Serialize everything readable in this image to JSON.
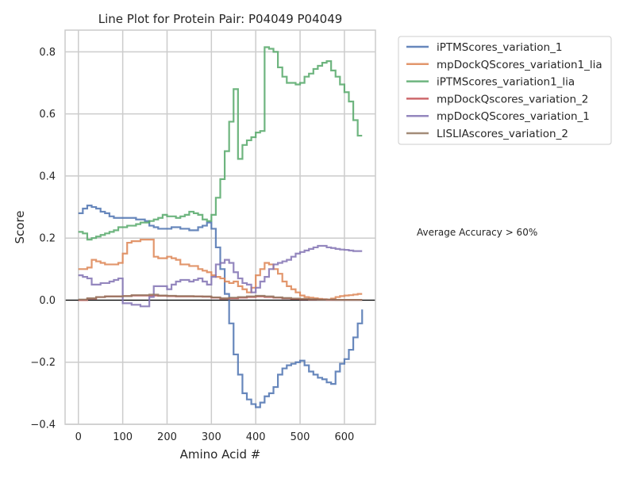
{
  "chart_data": {
    "type": "line",
    "title": "Line Plot for Protein Pair: P04049 P04049",
    "xlabel": "Amino Acid #",
    "ylabel": "Score",
    "xlim": [
      -30,
      670
    ],
    "ylim": [
      -0.4,
      0.87
    ],
    "xticks": [
      0,
      100,
      200,
      300,
      400,
      500,
      600
    ],
    "yticks": [
      -0.4,
      -0.2,
      0.0,
      0.2,
      0.4,
      0.6,
      0.8
    ],
    "xtick_labels": [
      "0",
      "100",
      "200",
      "300",
      "400",
      "500",
      "600"
    ],
    "ytick_labels": [
      "−0.4",
      "−0.2",
      "0.0",
      "0.2",
      "0.4",
      "0.6",
      "0.8"
    ],
    "grid": true,
    "legend_position": "outside-top-right",
    "annotation": "Average Accuracy > 60%",
    "series": [
      {
        "name": "iPTMScores_variation_1",
        "color": "#4c72b0",
        "x": [
          0,
          10,
          20,
          30,
          40,
          50,
          60,
          70,
          80,
          90,
          100,
          110,
          120,
          130,
          140,
          150,
          160,
          170,
          180,
          190,
          200,
          210,
          220,
          230,
          240,
          250,
          260,
          270,
          280,
          290,
          300,
          310,
          320,
          330,
          340,
          350,
          360,
          370,
          380,
          390,
          400,
          410,
          420,
          430,
          440,
          450,
          460,
          470,
          480,
          490,
          500,
          510,
          520,
          530,
          540,
          550,
          560,
          570,
          580,
          590,
          600,
          610,
          620,
          630,
          640
        ],
        "y": [
          0.28,
          0.295,
          0.305,
          0.3,
          0.295,
          0.285,
          0.28,
          0.27,
          0.265,
          0.265,
          0.265,
          0.265,
          0.265,
          0.26,
          0.26,
          0.255,
          0.24,
          0.235,
          0.23,
          0.23,
          0.23,
          0.235,
          0.235,
          0.23,
          0.23,
          0.225,
          0.225,
          0.235,
          0.24,
          0.25,
          0.23,
          0.17,
          0.1,
          0.02,
          -0.075,
          -0.175,
          -0.24,
          -0.3,
          -0.32,
          -0.335,
          -0.345,
          -0.33,
          -0.31,
          -0.3,
          -0.28,
          -0.24,
          -0.22,
          -0.21,
          -0.205,
          -0.2,
          -0.195,
          -0.21,
          -0.23,
          -0.24,
          -0.25,
          -0.255,
          -0.265,
          -0.27,
          -0.23,
          -0.205,
          -0.19,
          -0.16,
          -0.12,
          -0.075,
          -0.03
        ]
      },
      {
        "name": "mpDockQScores_variation1_lia",
        "color": "#dd8452",
        "x": [
          0,
          10,
          20,
          30,
          40,
          50,
          60,
          70,
          80,
          90,
          100,
          110,
          120,
          130,
          140,
          150,
          160,
          170,
          180,
          190,
          200,
          210,
          220,
          230,
          240,
          250,
          260,
          270,
          280,
          290,
          300,
          310,
          320,
          330,
          340,
          350,
          360,
          370,
          380,
          390,
          400,
          410,
          420,
          430,
          440,
          450,
          460,
          470,
          480,
          490,
          500,
          510,
          520,
          530,
          540,
          550,
          560,
          570,
          580,
          590,
          600,
          610,
          620,
          630,
          640
        ],
        "y": [
          0.1,
          0.1,
          0.105,
          0.13,
          0.125,
          0.12,
          0.115,
          0.115,
          0.115,
          0.12,
          0.15,
          0.185,
          0.19,
          0.19,
          0.195,
          0.195,
          0.195,
          0.14,
          0.135,
          0.135,
          0.14,
          0.135,
          0.13,
          0.115,
          0.115,
          0.11,
          0.11,
          0.1,
          0.095,
          0.09,
          0.08,
          0.075,
          0.07,
          0.06,
          0.055,
          0.06,
          0.045,
          0.035,
          0.025,
          0.04,
          0.08,
          0.1,
          0.12,
          0.115,
          0.1,
          0.085,
          0.06,
          0.045,
          0.035,
          0.025,
          0.015,
          0.01,
          0.008,
          0.006,
          0.004,
          0.003,
          0.002,
          0.005,
          0.01,
          0.013,
          0.015,
          0.016,
          0.018,
          0.02,
          0.02
        ]
      },
      {
        "name": "iPTMScores_variation1_lia",
        "color": "#55a868",
        "x": [
          0,
          10,
          20,
          30,
          40,
          50,
          60,
          70,
          80,
          90,
          100,
          110,
          120,
          130,
          140,
          150,
          160,
          170,
          180,
          190,
          200,
          210,
          220,
          230,
          240,
          250,
          260,
          270,
          280,
          290,
          300,
          310,
          320,
          330,
          340,
          350,
          360,
          370,
          380,
          390,
          400,
          410,
          420,
          430,
          440,
          450,
          460,
          470,
          480,
          490,
          500,
          510,
          520,
          530,
          540,
          550,
          560,
          570,
          580,
          590,
          600,
          610,
          620,
          630,
          640
        ],
        "y": [
          0.22,
          0.215,
          0.195,
          0.2,
          0.205,
          0.21,
          0.215,
          0.22,
          0.225,
          0.235,
          0.235,
          0.24,
          0.24,
          0.245,
          0.25,
          0.25,
          0.255,
          0.26,
          0.265,
          0.275,
          0.27,
          0.27,
          0.265,
          0.27,
          0.275,
          0.285,
          0.28,
          0.275,
          0.26,
          0.255,
          0.275,
          0.33,
          0.39,
          0.48,
          0.575,
          0.68,
          0.455,
          0.5,
          0.515,
          0.525,
          0.54,
          0.545,
          0.815,
          0.81,
          0.8,
          0.75,
          0.72,
          0.7,
          0.7,
          0.695,
          0.7,
          0.72,
          0.73,
          0.745,
          0.755,
          0.765,
          0.77,
          0.74,
          0.72,
          0.695,
          0.67,
          0.64,
          0.58,
          0.53,
          0.53
        ]
      },
      {
        "name": "mpDockQscores_variation_2",
        "color": "#c44e52",
        "x": [
          0,
          20,
          40,
          60,
          80,
          100,
          120,
          140,
          160,
          180,
          200,
          220,
          240,
          260,
          280,
          300,
          320,
          340,
          360,
          380,
          400,
          420,
          440,
          460,
          480,
          500,
          520,
          540,
          560,
          580,
          600,
          620,
          640
        ],
        "y": [
          0.0,
          0.005,
          0.01,
          0.012,
          0.012,
          0.013,
          0.015,
          0.015,
          0.015,
          0.014,
          0.013,
          0.012,
          0.012,
          0.012,
          0.011,
          0.008,
          0.005,
          0.006,
          0.008,
          0.01,
          0.012,
          0.01,
          0.008,
          0.006,
          0.004,
          0.003,
          0.002,
          0.002,
          0.001,
          0.001,
          0.001,
          0.001,
          0.001
        ]
      },
      {
        "name": "mpDockQScores_variation_1",
        "color": "#8172b3",
        "x": [
          0,
          10,
          20,
          30,
          40,
          50,
          60,
          70,
          80,
          90,
          100,
          110,
          120,
          130,
          140,
          150,
          160,
          170,
          180,
          190,
          200,
          210,
          220,
          230,
          240,
          250,
          260,
          270,
          280,
          290,
          300,
          310,
          320,
          330,
          340,
          350,
          360,
          370,
          380,
          390,
          400,
          410,
          420,
          430,
          440,
          450,
          460,
          470,
          480,
          490,
          500,
          510,
          520,
          530,
          540,
          550,
          560,
          570,
          580,
          590,
          600,
          610,
          620,
          630,
          640
        ],
        "y": [
          0.08,
          0.075,
          0.07,
          0.05,
          0.05,
          0.055,
          0.055,
          0.06,
          0.065,
          0.07,
          -0.01,
          -0.01,
          -0.015,
          -0.015,
          -0.02,
          -0.02,
          0.01,
          0.045,
          0.045,
          0.045,
          0.035,
          0.05,
          0.06,
          0.065,
          0.065,
          0.06,
          0.065,
          0.07,
          0.06,
          0.05,
          0.075,
          0.115,
          0.12,
          0.13,
          0.12,
          0.09,
          0.07,
          0.055,
          0.05,
          0.025,
          0.04,
          0.06,
          0.075,
          0.1,
          0.115,
          0.12,
          0.125,
          0.13,
          0.14,
          0.15,
          0.155,
          0.16,
          0.165,
          0.17,
          0.175,
          0.175,
          0.17,
          0.168,
          0.165,
          0.163,
          0.162,
          0.16,
          0.158,
          0.158,
          0.158
        ]
      },
      {
        "name": "LISLIAscores_variation_2",
        "color": "#937860",
        "x": [
          0,
          20,
          40,
          60,
          80,
          100,
          120,
          140,
          160,
          180,
          200,
          220,
          240,
          260,
          280,
          300,
          320,
          340,
          360,
          380,
          400,
          420,
          440,
          460,
          480,
          500,
          520,
          540,
          560,
          580,
          600,
          620,
          640
        ],
        "y": [
          0.002,
          0.006,
          0.01,
          0.012,
          0.012,
          0.013,
          0.016,
          0.016,
          0.018,
          0.015,
          0.014,
          0.013,
          0.013,
          0.012,
          0.012,
          0.009,
          0.006,
          0.008,
          0.01,
          0.012,
          0.014,
          0.012,
          0.009,
          0.007,
          0.005,
          0.004,
          0.003,
          0.002,
          0.002,
          0.001,
          0.001,
          0.001,
          0.001
        ]
      }
    ]
  }
}
